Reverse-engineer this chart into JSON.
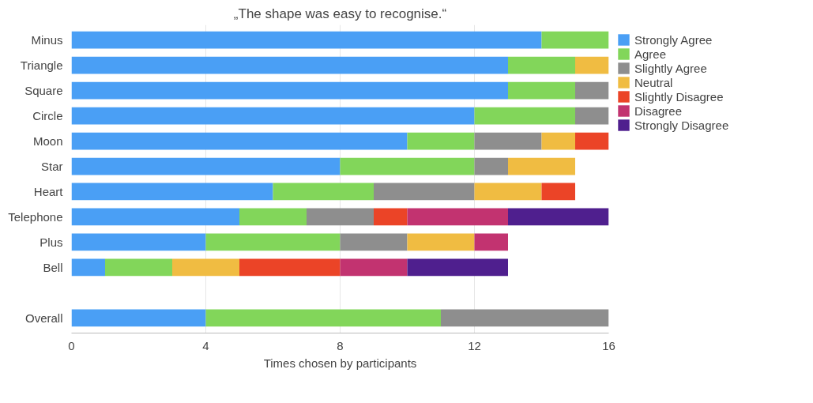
{
  "chart_data": {
    "type": "bar",
    "orientation": "horizontal",
    "stacked": true,
    "title": "„The shape was easy to recognise.“",
    "xlabel": "Times chosen by participants",
    "categories": [
      "Minus",
      "Triangle",
      "Square",
      "Circle",
      "Moon",
      "Star",
      "Heart",
      "Telephone",
      "Plus",
      "Bell",
      null,
      "Overall"
    ],
    "series": [
      {
        "name": "Strongly Agree",
        "color": "#4a9ff5",
        "values": [
          14,
          13,
          13,
          12,
          10,
          8,
          6,
          5,
          4,
          1,
          null,
          4
        ]
      },
      {
        "name": "Agree",
        "color": "#82d65a",
        "values": [
          2,
          2,
          2,
          3,
          2,
          4,
          3,
          2,
          4,
          2,
          null,
          7
        ]
      },
      {
        "name": "Slightly Agree",
        "color": "#8e8e8e",
        "values": [
          0,
          0,
          1,
          1,
          2,
          1,
          3,
          2,
          2,
          0,
          null,
          5
        ]
      },
      {
        "name": "Neutral",
        "color": "#f0bc42",
        "values": [
          0,
          1,
          0,
          0,
          1,
          2,
          2,
          0,
          2,
          2,
          null,
          0
        ]
      },
      {
        "name": "Slightly Disagree",
        "color": "#eb4427",
        "values": [
          0,
          0,
          0,
          0,
          1,
          0,
          1,
          1,
          0,
          3,
          null,
          0
        ]
      },
      {
        "name": "Disagree",
        "color": "#c23370",
        "values": [
          0,
          0,
          0,
          0,
          0,
          0,
          0,
          3,
          1,
          2,
          null,
          0
        ]
      },
      {
        "name": "Strongly Disagree",
        "color": "#4f1f8e",
        "values": [
          0,
          0,
          0,
          0,
          0,
          0,
          0,
          3,
          0,
          3,
          null,
          0
        ]
      }
    ],
    "xlim": [
      0,
      16
    ],
    "xticks": [
      0,
      4,
      8,
      12,
      16
    ],
    "grid": "x",
    "legend": "top right"
  }
}
